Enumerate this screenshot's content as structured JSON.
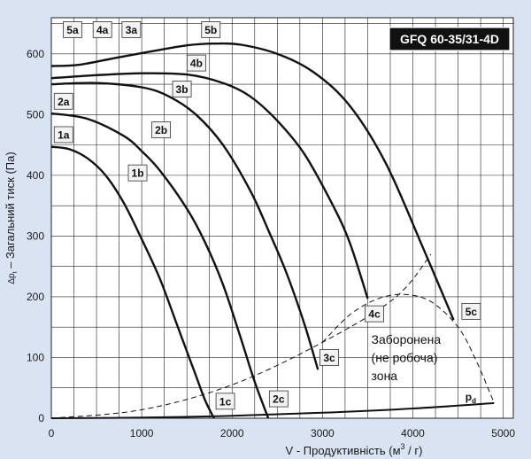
{
  "chart_data": {
    "type": "line",
    "title": "GFQ 60-35/31-4D",
    "xlabel": "V - Продуктивність (м",
    "xlabel_sup": "3",
    "xlabel_end": " / г)",
    "ylabel": "Δp",
    "ylabel_sub": "t",
    "ylabel_rest": " – Загальний тиск (Па)",
    "xlim": [
      0,
      5000
    ],
    "ylim": [
      0,
      650
    ],
    "xticks": [
      0,
      1000,
      2000,
      3000,
      4000,
      5000
    ],
    "yticks": [
      0,
      100,
      200,
      300,
      400,
      500,
      600
    ],
    "grid": true,
    "series": [
      {
        "name": "1",
        "x": [
          0,
          200,
          400,
          600,
          800,
          1000,
          1200,
          1400,
          1600,
          1700,
          1800
        ],
        "y": [
          447,
          443,
          428,
          400,
          355,
          295,
          230,
          150,
          70,
          30,
          0
        ]
      },
      {
        "name": "2",
        "x": [
          0,
          400,
          800,
          1000,
          1200,
          1500,
          1700,
          1900,
          2100,
          2250,
          2400
        ],
        "y": [
          502,
          493,
          465,
          440,
          408,
          345,
          290,
          220,
          130,
          60,
          0
        ]
      },
      {
        "name": "3",
        "x": [
          0,
          500,
          1000,
          1300,
          1600,
          1900,
          2200,
          2400,
          2600,
          2800,
          2950
        ],
        "y": [
          550,
          552,
          545,
          530,
          500,
          450,
          375,
          310,
          240,
          155,
          80
        ]
      },
      {
        "name": "4",
        "x": [
          0,
          500,
          1000,
          1500,
          1900,
          2200,
          2500,
          2800,
          3100,
          3300,
          3500
        ],
        "y": [
          560,
          565,
          568,
          566,
          552,
          530,
          490,
          435,
          355,
          290,
          197
        ]
      },
      {
        "name": "5",
        "x": [
          0,
          300,
          700,
          1100,
          1500,
          1800,
          2100,
          2500,
          2900,
          3300,
          3700,
          4100,
          4450
        ],
        "y": [
          580,
          582,
          593,
          604,
          614,
          617,
          615,
          600,
          570,
          515,
          420,
          285,
          162
        ]
      }
    ],
    "boundary_lines": [
      {
        "name": "system",
        "style": "dashed",
        "x": [
          0,
          1000,
          2000,
          3000,
          3800,
          4200
        ],
        "y": [
          0,
          14,
          55,
          125,
          198,
          270
        ]
      },
      {
        "name": "forbidden-zone-boundary",
        "style": "dashed",
        "x": [
          3000,
          3300,
          3600,
          3900,
          4200,
          4500,
          4700,
          4900
        ],
        "y": [
          125,
          170,
          196,
          204,
          192,
          150,
          95,
          25
        ]
      },
      {
        "name": "pd",
        "style": "solid",
        "x": [
          0,
          1000,
          2000,
          3000,
          4000,
          4900
        ],
        "y": [
          0,
          1,
          4,
          9,
          16,
          25
        ]
      }
    ],
    "point_labels": [
      {
        "text": "5a",
        "x": 230,
        "y": 640
      },
      {
        "text": "4a",
        "x": 560,
        "y": 640
      },
      {
        "text": "3a",
        "x": 880,
        "y": 640
      },
      {
        "text": "5b",
        "x": 1760,
        "y": 640
      },
      {
        "text": "4b",
        "x": 1600,
        "y": 585
      },
      {
        "text": "3b",
        "x": 1440,
        "y": 542
      },
      {
        "text": "2a",
        "x": 130,
        "y": 522
      },
      {
        "text": "2b",
        "x": 1210,
        "y": 475
      },
      {
        "text": "1a",
        "x": 130,
        "y": 467
      },
      {
        "text": "1b",
        "x": 950,
        "y": 404
      },
      {
        "text": "4c",
        "x": 3570,
        "y": 172
      },
      {
        "text": "5c",
        "x": 4640,
        "y": 176
      },
      {
        "text": "3c",
        "x": 3070,
        "y": 100
      },
      {
        "text": "1c",
        "x": 1920,
        "y": 28
      },
      {
        "text": "2c",
        "x": 2510,
        "y": 32
      }
    ],
    "annotations": [
      {
        "text": "Заборонена",
        "x": 3540,
        "y": 130
      },
      {
        "text": "(не робоча)",
        "x": 3540,
        "y": 100
      },
      {
        "text": "зона",
        "x": 3540,
        "y": 70
      }
    ],
    "pd_label": {
      "main": "p",
      "sub": "d",
      "x": 4580,
      "y": 35
    }
  },
  "colors": {
    "background": "#d9e3f1",
    "plot_background": "#ffffff",
    "grid": "#222222",
    "title_box": "#111111",
    "label_box": "#f3f3f3",
    "curve": "#111111"
  }
}
